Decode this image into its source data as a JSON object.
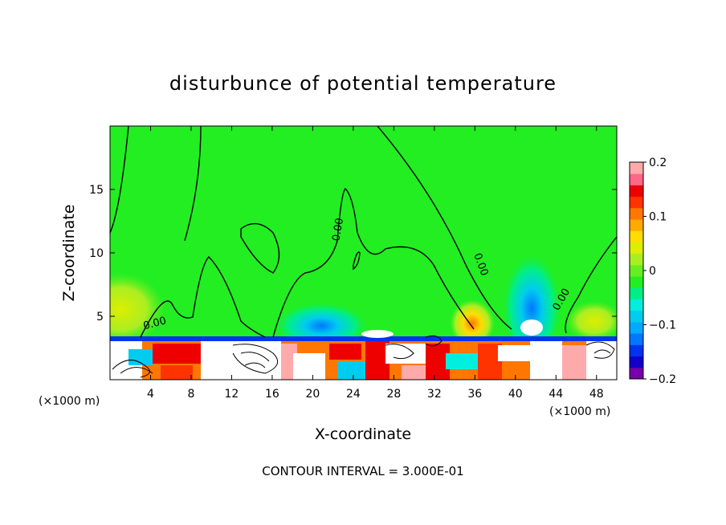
{
  "chart_data": {
    "type": "heatmap",
    "title": "disturbunce of potential temperature",
    "xlabel": "X-coordinate",
    "ylabel": "Z-coordinate",
    "x_unit_left": "(×1000 m)",
    "x_unit_right": "(×1000 m)",
    "xlim": [
      0,
      50
    ],
    "ylim": [
      0,
      20
    ],
    "x_ticks": [
      4,
      8,
      12,
      16,
      20,
      24,
      28,
      32,
      36,
      40,
      44,
      48
    ],
    "y_ticks": [
      5,
      10,
      15
    ],
    "colorbar": {
      "range": [
        -0.2,
        0.2
      ],
      "tick_values": [
        0.2,
        0.1,
        0,
        -0.1,
        -0.2
      ],
      "tick_labels": [
        "0.2",
        "0.1",
        "0",
        "−0.1",
        "−0.2"
      ],
      "colors": [
        "#7700aa",
        "#1100cc",
        "#0033ee",
        "#0077ff",
        "#00aaff",
        "#00ccee",
        "#00eedd",
        "#00ee88",
        "#22ee22",
        "#66ee22",
        "#aaee22",
        "#ddee00",
        "#ffdd00",
        "#ffaa00",
        "#ff7700",
        "#ff3300",
        "#ee0000",
        "#ff6688",
        "#ffaaaa"
      ]
    },
    "contour_labels": [
      {
        "text": "0.00",
        "x": 4.5,
        "y": 4.2,
        "angle": -15
      },
      {
        "text": "0.00",
        "x": 22.8,
        "y": 11.8,
        "angle": -80
      },
      {
        "text": "0.00",
        "x": 36.3,
        "y": 9.0,
        "angle": 70
      },
      {
        "text": "0.00",
        "x": 44.8,
        "y": 6.2,
        "angle": -60
      }
    ],
    "footer": "CONTOUR INTERVAL = 3.000E-01"
  }
}
